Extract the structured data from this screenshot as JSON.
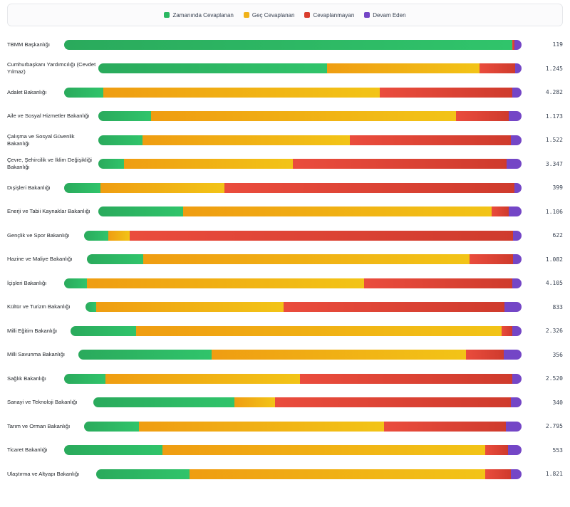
{
  "legend": [
    {
      "label": "Zamanında Cevaplanan",
      "color": "#2bb862"
    },
    {
      "label": "Geç Cevaplanan",
      "color": "#f0b21a"
    },
    {
      "label": "Cevaplanmayan",
      "color": "#d93d2e"
    },
    {
      "label": "Devam Eden",
      "color": "#7446c6"
    }
  ],
  "chart_data": {
    "type": "bar",
    "stacked": true,
    "orientation": "horizontal",
    "legend_position": "top",
    "series": [
      {
        "name": "Zamanında Cevaplanan",
        "color": "#2bb862"
      },
      {
        "name": "Geç Cevaplanan",
        "color": "#f0b21a"
      },
      {
        "name": "Cevaplanmayan",
        "color": "#d93d2e"
      },
      {
        "name": "Devam Eden",
        "color": "#7446c6"
      }
    ],
    "rows": [
      {
        "label": "TBMM Başkanlığı",
        "total": "119",
        "shares": [
          98.0,
          0,
          0.5,
          1.5
        ]
      },
      {
        "label": "Cumhurbaşkanı Yardımcılığı (Cevdet Yılmaz)",
        "total": "1.245",
        "shares": [
          54.0,
          36.0,
          8.5,
          1.5
        ]
      },
      {
        "label": "Adalet Bakanlığı",
        "total": "4.282",
        "shares": [
          8.5,
          60.5,
          29.0,
          2.0
        ]
      },
      {
        "label": "Aile ve Sosyal Hizmetler Bakanlığı",
        "total": "1.173",
        "shares": [
          12.5,
          72.0,
          12.5,
          3.0
        ]
      },
      {
        "label": "Çalışma ve Sosyal Güvenlik Bakanlığı",
        "total": "1.522",
        "shares": [
          10.5,
          49.0,
          38.0,
          2.5
        ]
      },
      {
        "label": "Çevre, Şehircilik ve İklim Değişikliği Bakanlığı",
        "total": "3.347",
        "shares": [
          6.0,
          40.0,
          50.5,
          3.5
        ]
      },
      {
        "label": "Dışişleri Bakanlığı",
        "total": "399",
        "shares": [
          8.0,
          27.0,
          63.5,
          1.5
        ]
      },
      {
        "label": "Enerji ve Tabii Kaynaklar Bakanlığı",
        "total": "1.106",
        "shares": [
          20.0,
          73.0,
          4.0,
          3.0
        ]
      },
      {
        "label": "Gençlik ve Spor Bakanlığı",
        "total": "622",
        "shares": [
          5.5,
          5.0,
          87.5,
          2.0
        ]
      },
      {
        "label": "Hazine ve Maliye Bakanlığı",
        "total": "1.082",
        "shares": [
          13.0,
          75.0,
          10.0,
          2.0
        ]
      },
      {
        "label": "İçişleri Bakanlığı",
        "total": "4.105",
        "shares": [
          5.0,
          60.5,
          32.5,
          2.0
        ]
      },
      {
        "label": "Kültür ve Turizm Bakanlığı",
        "total": "833",
        "shares": [
          2.5,
          43.0,
          50.5,
          4.0
        ]
      },
      {
        "label": "Milli Eğitim Bakanlığı",
        "total": "2.326",
        "shares": [
          14.5,
          81.0,
          2.5,
          2.0
        ]
      },
      {
        "label": "Milli Savunma Bakanlığı",
        "total": "356",
        "shares": [
          30.0,
          57.5,
          8.5,
          4.0
        ]
      },
      {
        "label": "Sağlık Bakanlığı",
        "total": "2.520",
        "shares": [
          9.0,
          42.5,
          46.5,
          2.0
        ]
      },
      {
        "label": "Sanayi ve Teknoloji Bakanlığı",
        "total": "340",
        "shares": [
          33.0,
          9.5,
          55.0,
          2.5
        ]
      },
      {
        "label": "Tarım ve Orman Bakanlığı",
        "total": "2.795",
        "shares": [
          12.5,
          56.0,
          28.0,
          3.5
        ]
      },
      {
        "label": "Ticaret Bakanlığı",
        "total": "553",
        "shares": [
          21.5,
          70.5,
          5.0,
          3.0
        ]
      },
      {
        "label": "Ulaştırma ve Altyapı Bakanlığı",
        "total": "1.821",
        "shares": [
          22.0,
          69.5,
          6.0,
          2.5
        ]
      }
    ]
  }
}
